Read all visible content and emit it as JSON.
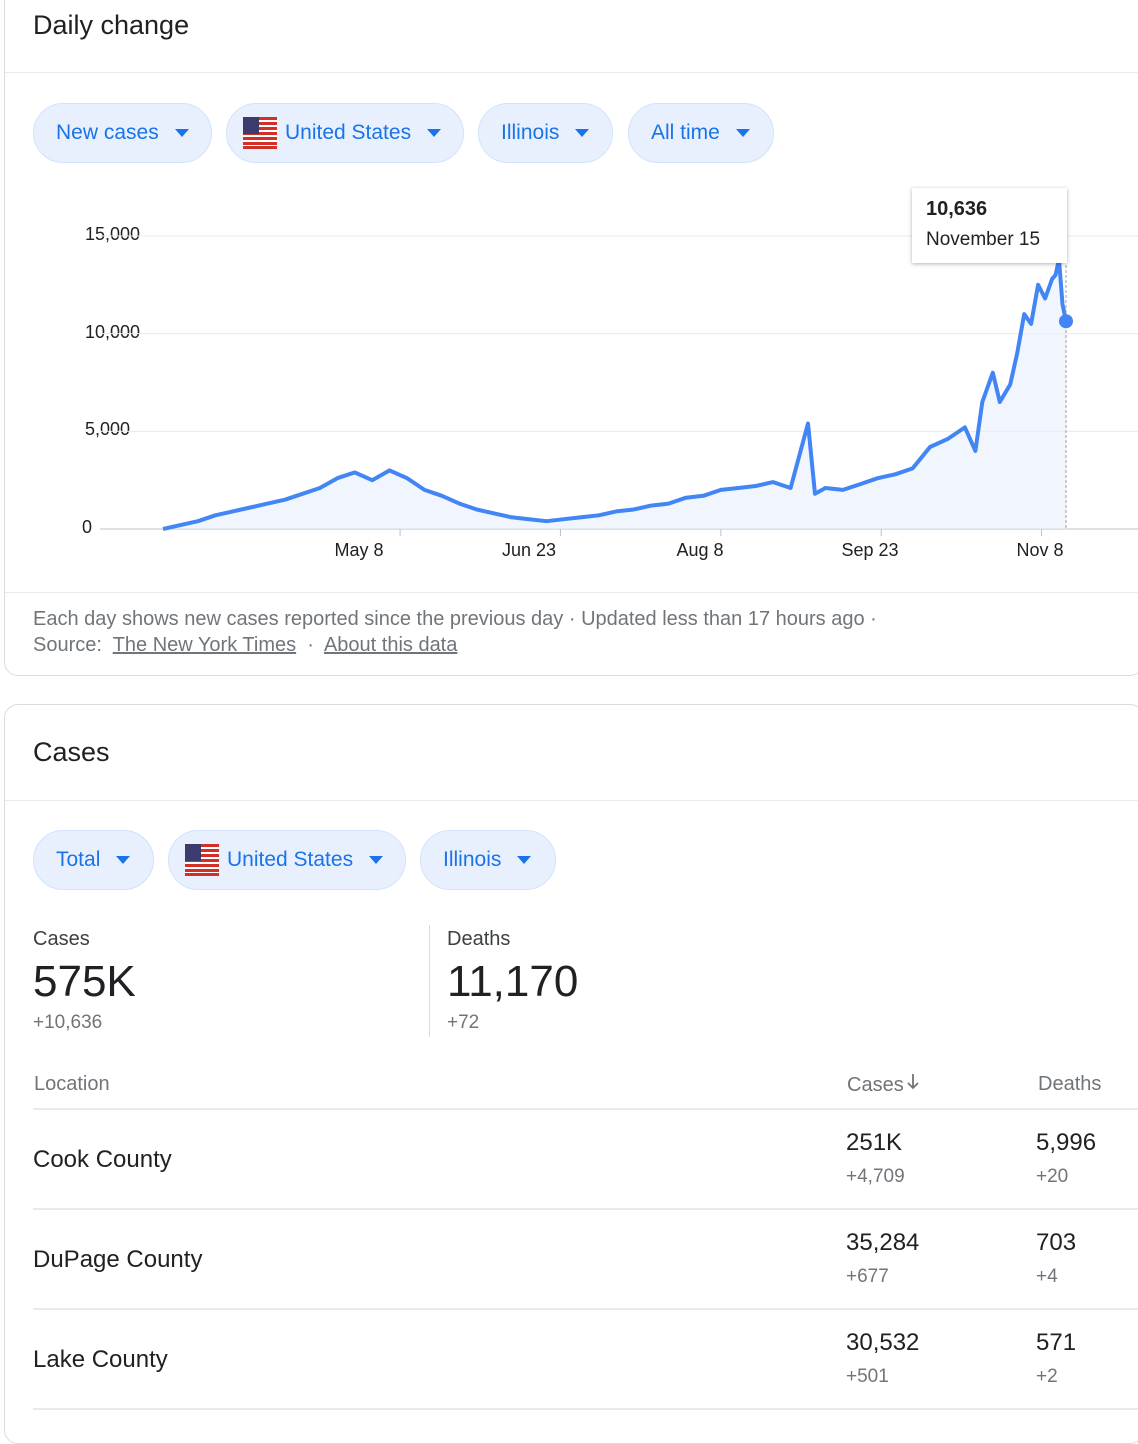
{
  "daily": {
    "title": "Daily change",
    "filters": [
      {
        "label": "New cases",
        "flag": false
      },
      {
        "label": "United States",
        "flag": true
      },
      {
        "label": "Illinois",
        "flag": false
      },
      {
        "label": "All time",
        "flag": false
      }
    ],
    "tooltip": {
      "value": "10,636",
      "date": "November 15"
    },
    "footnote": {
      "text": "Each day shows new cases reported since the previous day · Updated less than 17 hours ago ·",
      "source_label": "Source:",
      "source_link": "The New York Times",
      "separator": "·",
      "about_link": "About this data"
    }
  },
  "chart_data": {
    "type": "area",
    "title": "",
    "xlabel": "",
    "ylabel": "",
    "ylim": [
      0,
      15000
    ],
    "y_ticks": [
      "15,000",
      "10,000",
      "5,000",
      "0"
    ],
    "x_ticks": [
      "May 8",
      "Jun 23",
      "Aug 8",
      "Sep 23",
      "Nov 8"
    ],
    "series_color": "#4285f4",
    "x": [
      "Mar 1",
      "Mar 6",
      "Mar 11",
      "Mar 16",
      "Mar 21",
      "Mar 26",
      "Mar 31",
      "Apr 5",
      "Apr 10",
      "Apr 15",
      "Apr 20",
      "Apr 25",
      "Apr 30",
      "May 5",
      "May 10",
      "May 15",
      "May 20",
      "May 25",
      "May 30",
      "Jun 4",
      "Jun 9",
      "Jun 14",
      "Jun 19",
      "Jun 24",
      "Jun 29",
      "Jul 4",
      "Jul 9",
      "Jul 14",
      "Jul 19",
      "Jul 24",
      "Jul 29",
      "Aug 3",
      "Aug 8",
      "Aug 13",
      "Aug 18",
      "Aug 23",
      "Aug 28",
      "Sep 2",
      "Sep 4",
      "Sep 7",
      "Sep 12",
      "Sep 17",
      "Sep 22",
      "Sep 27",
      "Oct 2",
      "Oct 7",
      "Oct 12",
      "Oct 17",
      "Oct 20",
      "Oct 22",
      "Oct 25",
      "Oct 27",
      "Oct 30",
      "Nov 1",
      "Nov 3",
      "Nov 5",
      "Nov 7",
      "Nov 9",
      "Nov 11",
      "Nov 12",
      "Nov 13",
      "Nov 14",
      "Nov 15"
    ],
    "values": [
      0,
      200,
      400,
      700,
      900,
      1100,
      1300,
      1500,
      1800,
      2100,
      2600,
      2900,
      2500,
      3000,
      2600,
      2000,
      1700,
      1300,
      1000,
      800,
      600,
      500,
      400,
      500,
      600,
      700,
      900,
      1000,
      1200,
      1300,
      1600,
      1700,
      2000,
      2100,
      2200,
      2400,
      2100,
      5400,
      1800,
      2100,
      2000,
      2300,
      2600,
      2800,
      3100,
      4200,
      4600,
      5200,
      4000,
      6500,
      8000,
      6500,
      7400,
      9000,
      11000,
      10500,
      12500,
      11800,
      12800,
      13000,
      13800,
      11500,
      10636
    ],
    "highlight": {
      "x": "Nov 15",
      "value": 10636
    }
  },
  "cases": {
    "title": "Cases",
    "filters": [
      {
        "label": "Total",
        "flag": false
      },
      {
        "label": "United States",
        "flag": true
      },
      {
        "label": "Illinois",
        "flag": false
      }
    ],
    "stats": [
      {
        "label": "Cases",
        "value": "575K",
        "delta": "+10,636"
      },
      {
        "label": "Deaths",
        "value": "11,170",
        "delta": "+72"
      }
    ],
    "table": {
      "headers": {
        "location": "Location",
        "cases": "Cases",
        "deaths": "Deaths"
      },
      "sort_icon": "arrow-down-icon",
      "rows": [
        {
          "location": "Cook County",
          "cases": "251K",
          "cases_delta": "+4,709",
          "deaths": "5,996",
          "deaths_delta": "+20"
        },
        {
          "location": "DuPage County",
          "cases": "35,284",
          "cases_delta": "+677",
          "deaths": "703",
          "deaths_delta": "+4"
        },
        {
          "location": "Lake County",
          "cases": "30,532",
          "cases_delta": "+501",
          "deaths": "571",
          "deaths_delta": "+2"
        }
      ]
    }
  },
  "colors": {
    "accent": "#1a73e8",
    "chip_bg": "#e8f0fe",
    "line": "#4285f4"
  }
}
